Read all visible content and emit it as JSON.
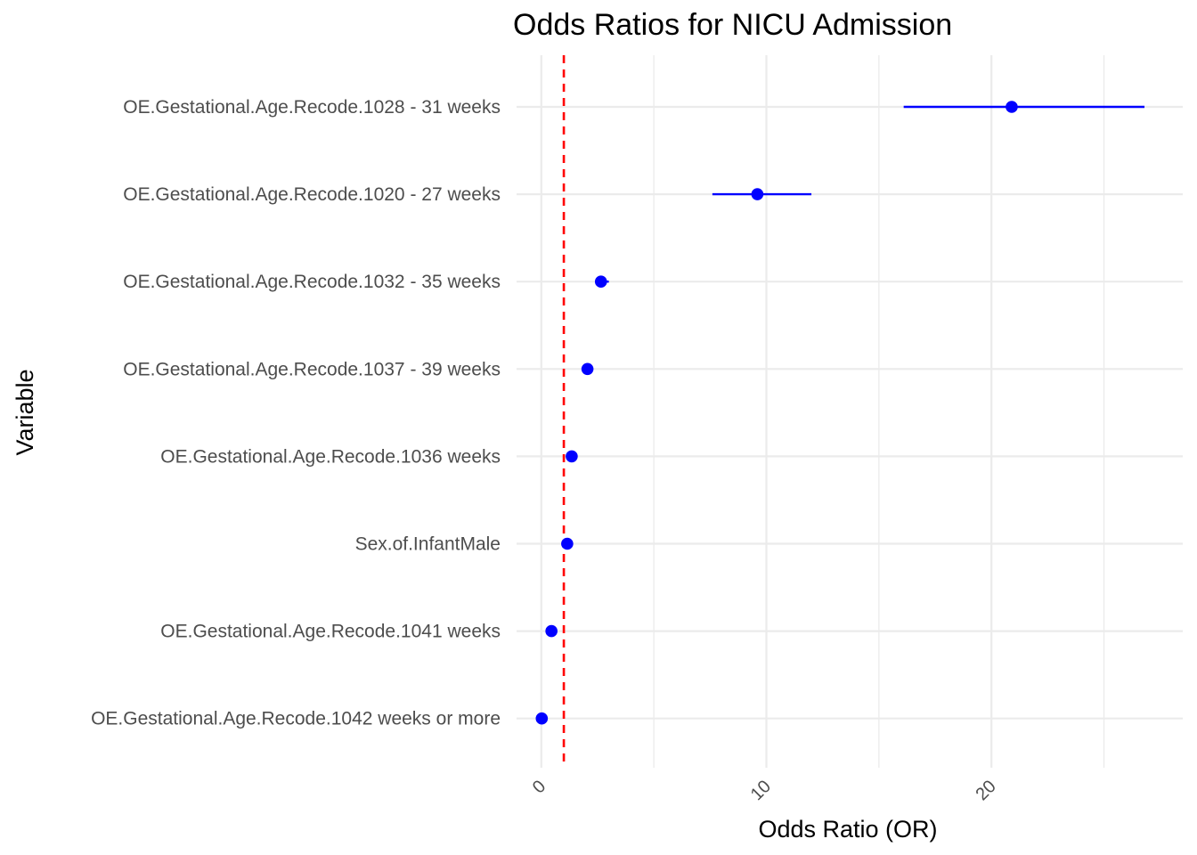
{
  "chart_data": {
    "type": "scatter",
    "title": "Odds Ratios for NICU Admission",
    "xlabel": "Odds Ratio (OR)",
    "ylabel": "Variable",
    "xlim": [
      -1.1,
      28.5
    ],
    "x_ticks": [
      {
        "value": 0,
        "label": "0"
      },
      {
        "value": 10,
        "label": "10"
      },
      {
        "value": 20,
        "label": "20"
      }
    ],
    "x_minor_ticks": [
      5,
      15,
      25
    ],
    "x_tick_rotation": -45,
    "grid": true,
    "reference_line": {
      "x": 1,
      "color": "#ff0000",
      "style": "dashed"
    },
    "point_color": "#0000ff",
    "categories": [
      "OE.Gestational.Age.Recode.1028 - 31 weeks",
      "OE.Gestational.Age.Recode.1020 - 27 weeks",
      "OE.Gestational.Age.Recode.1032 - 35 weeks",
      "OE.Gestational.Age.Recode.1037 - 39 weeks",
      "OE.Gestational.Age.Recode.1036 weeks",
      "Sex.of.InfantMale",
      "OE.Gestational.Age.Recode.1041 weeks",
      "OE.Gestational.Age.Recode.1042 weeks or more"
    ],
    "or": [
      20.9,
      9.6,
      2.65,
      2.05,
      1.35,
      1.15,
      0.45,
      0.02
    ],
    "ci_low": [
      16.1,
      7.6,
      2.5,
      1.95,
      1.25,
      1.05,
      0.4,
      0.01
    ],
    "ci_high": [
      26.8,
      12.0,
      3.0,
      2.15,
      1.45,
      1.25,
      0.5,
      0.03
    ]
  }
}
